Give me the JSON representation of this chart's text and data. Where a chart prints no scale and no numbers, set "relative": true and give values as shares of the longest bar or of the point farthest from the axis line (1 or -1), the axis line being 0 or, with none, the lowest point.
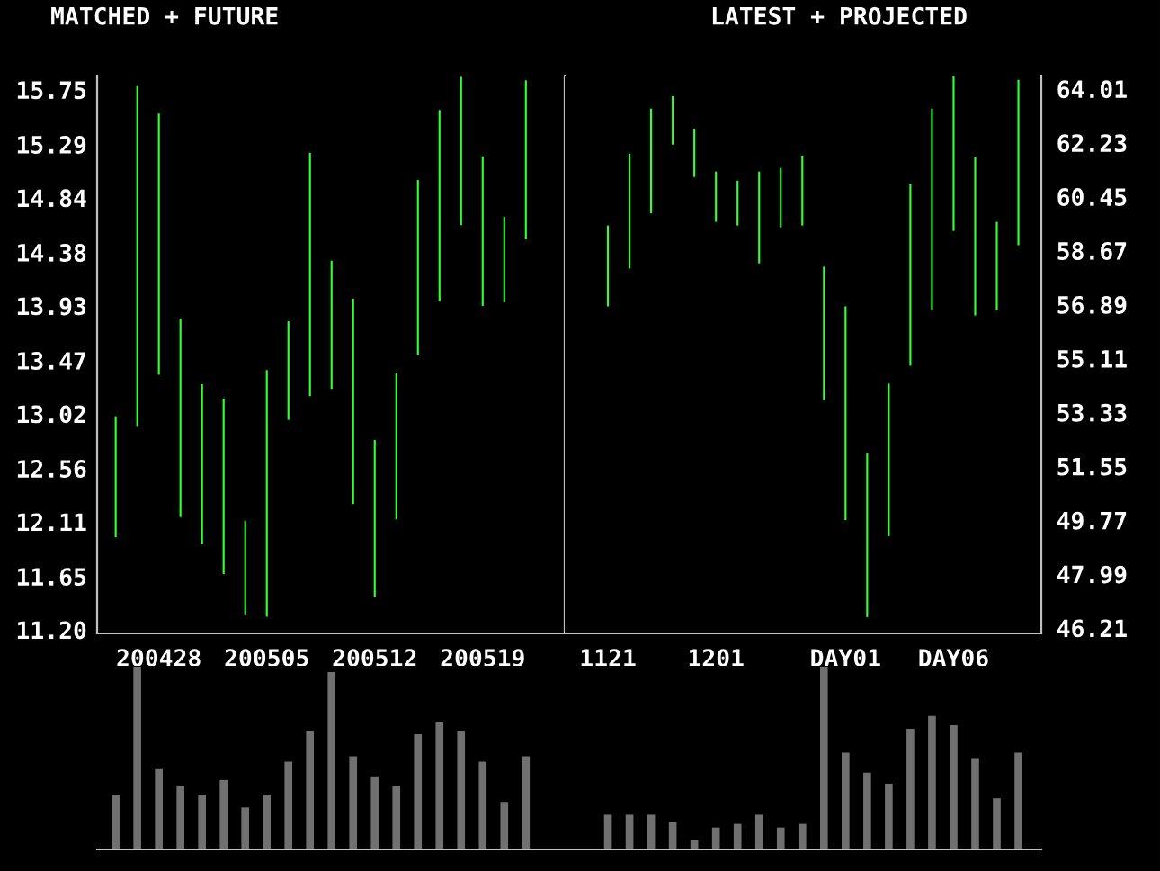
{
  "chart_data": [
    {
      "type": "bar",
      "title": "MATCHED + FUTURE",
      "categories": [
        null,
        null,
        "200428",
        null,
        null,
        null,
        null,
        "200505",
        null,
        null,
        null,
        null,
        "200512",
        null,
        null,
        null,
        null,
        "200519",
        null,
        null
      ],
      "series": [
        {
          "color": "#33ff33",
          "base": [
            11.98,
            12.92,
            13.35,
            12.15,
            11.92,
            11.67,
            11.33,
            11.31,
            12.97,
            13.17,
            13.23,
            12.26,
            11.48,
            12.13,
            13.52,
            13.97,
            14.61,
            13.93,
            13.96,
            14.49
          ],
          "values": [
            1.02,
            2.86,
            2.2,
            1.67,
            1.35,
            1.48,
            0.79,
            2.08,
            0.83,
            2.05,
            1.08,
            1.73,
            1.32,
            1.23,
            1.47,
            1.61,
            1.25,
            1.26,
            0.72,
            1.34
          ]
        }
      ],
      "ylim": [
        11.17,
        15.87
      ],
      "yticks": [
        {
          "value": 11.2,
          "label": "11.20"
        },
        11.65,
        12.11,
        12.56,
        13.02,
        13.47,
        13.93,
        14.38,
        14.84,
        15.29,
        15.75
      ],
      "grid": false,
      "legend": false
    },
    {
      "type": "bar",
      "title": "LATEST + PROJECTED",
      "categories": [
        "1121",
        null,
        null,
        null,
        null,
        "1201",
        null,
        null,
        null,
        null,
        null,
        "DAY01",
        null,
        null,
        null,
        null,
        "DAY06",
        null,
        null,
        null
      ],
      "series": [
        {
          "color": "#33ff33",
          "axis": "y2",
          "base": [
            56.83,
            58.08,
            59.9,
            62.17,
            61.1,
            59.62,
            59.5,
            58.25,
            59.44,
            59.5,
            53.74,
            49.77,
            46.57,
            49.24,
            54.87,
            56.71,
            59.32,
            56.53,
            56.71,
            58.85
          ],
          "values": [
            2.67,
            3.79,
            3.46,
            1.6,
            1.6,
            1.66,
            1.48,
            3.03,
            1.96,
            2.31,
            4.4,
            7.06,
            5.4,
            5.04,
            5.99,
            6.65,
            5.11,
            5.23,
            2.91,
            5.46
          ]
        }
      ],
      "y2lim": [
        46.03,
        64.45
      ],
      "y2ticks": [
        46.21,
        47.99,
        49.77,
        51.55,
        53.33,
        55.11,
        56.89,
        58.67,
        60.45,
        62.23,
        64.01
      ],
      "grid": false,
      "legend": false
    },
    {
      "type": "bar",
      "relative": true,
      "tick_labels": false,
      "categories": [
        null,
        null,
        null,
        null,
        null,
        null,
        null,
        null,
        null,
        null,
        null,
        null,
        null,
        null,
        null,
        null,
        null,
        null,
        null,
        null
      ],
      "series": [
        {
          "color": "#707070",
          "values": [
            0.3,
            1,
            0.44,
            0.35,
            0.3,
            0.38,
            0.23,
            0.3,
            0.48,
            0.65,
            0.97,
            0.51,
            0.4,
            0.35,
            0.63,
            0.7,
            0.65,
            0.48,
            0.26,
            0.51
          ]
        }
      ],
      "grid": false,
      "legend": false
    },
    {
      "type": "bar",
      "relative": true,
      "tick_labels": false,
      "categories": [
        null,
        null,
        null,
        null,
        null,
        null,
        null,
        null,
        null,
        null,
        null,
        null,
        null,
        null,
        null,
        null,
        null,
        null,
        null,
        null
      ],
      "series": [
        {
          "color": "#707070",
          "values": [
            0.19,
            0.19,
            0.19,
            0.15,
            0.05,
            0.12,
            0.14,
            0.19,
            0.12,
            0.14,
            1,
            0.53,
            0.42,
            0.36,
            0.66,
            0.73,
            0.68,
            0.5,
            0.28,
            0.53
          ]
        }
      ],
      "grid": false,
      "legend": false
    }
  ]
}
